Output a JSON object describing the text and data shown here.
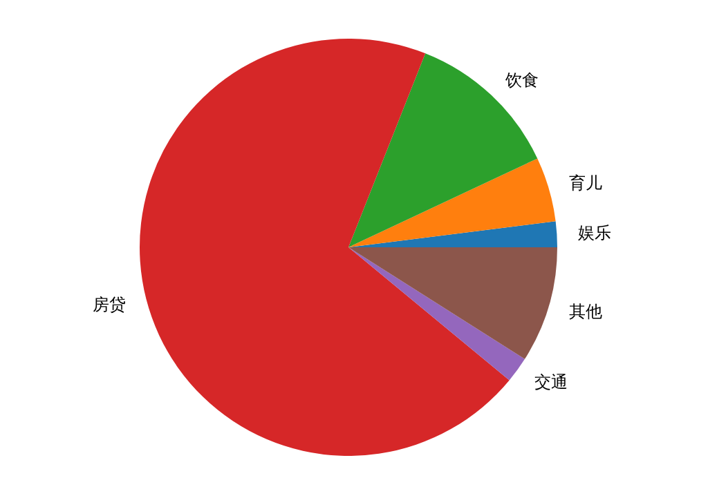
{
  "chart_data": {
    "type": "pie",
    "categories": [
      "娱乐",
      "育儿",
      "饮食",
      "房贷",
      "交通",
      "其他"
    ],
    "values": [
      2,
      5,
      12,
      70,
      2,
      9
    ],
    "colors": [
      "#1f77b4",
      "#ff7f0e",
      "#2ca02c",
      "#d62728",
      "#9467bd",
      "#8c564b"
    ]
  }
}
